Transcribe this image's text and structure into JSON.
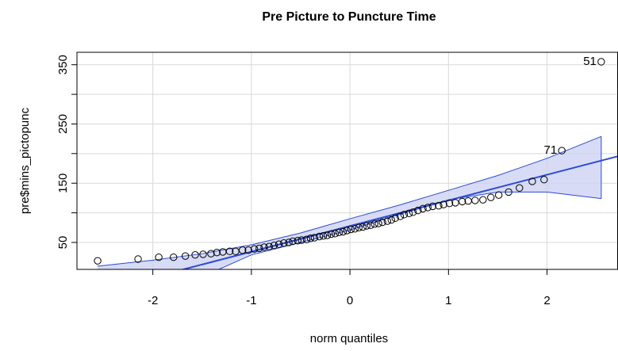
{
  "chart_data": {
    "type": "qqplot",
    "title": "Pre Picture to Puncture Time",
    "xlabel": "norm quantiles",
    "ylabel": "pre$mins_pictopunc",
    "xlim": [
      -2.77,
      2.72
    ],
    "ylim": [
      4.5,
      371
    ],
    "xticks": [
      -2,
      -1,
      0,
      1,
      2
    ],
    "yticks": [
      50,
      150,
      250,
      350
    ],
    "yminor_ticks": [
      100,
      200,
      300
    ],
    "xgrid": [
      -2,
      -1,
      0,
      1,
      2
    ],
    "ygrid": [
      50,
      100,
      150,
      200,
      250,
      300,
      350
    ],
    "grid": true,
    "point_color": "#000000",
    "line_color": "#2c4bd4",
    "band_fill": "#cdd2f3",
    "x": [
      -2.56,
      -2.15,
      -1.94,
      -1.79,
      -1.67,
      -1.57,
      -1.49,
      -1.41,
      -1.35,
      -1.29,
      -1.22,
      -1.16,
      -1.09,
      -1.03,
      -0.97,
      -0.92,
      -0.87,
      -0.82,
      -0.77,
      -0.72,
      -0.67,
      -0.62,
      -0.58,
      -0.53,
      -0.49,
      -0.44,
      -0.4,
      -0.36,
      -0.31,
      -0.27,
      -0.23,
      -0.19,
      -0.15,
      -0.11,
      -0.07,
      -0.03,
      0.01,
      0.05,
      0.09,
      0.13,
      0.17,
      0.21,
      0.25,
      0.29,
      0.33,
      0.38,
      0.42,
      0.46,
      0.51,
      0.55,
      0.6,
      0.64,
      0.69,
      0.74,
      0.79,
      0.84,
      0.9,
      0.95,
      1.01,
      1.07,
      1.14,
      1.2,
      1.27,
      1.35,
      1.43,
      1.51,
      1.61,
      1.72,
      1.85,
      1.97,
      2.15,
      2.55
    ],
    "y": [
      19,
      22,
      25,
      25,
      27,
      29,
      30,
      31,
      33,
      34,
      35,
      35,
      37,
      37,
      39,
      40,
      42,
      43,
      45,
      47,
      49,
      50,
      52,
      53,
      54,
      55,
      57,
      58,
      60,
      61,
      62,
      64,
      65,
      67,
      68,
      70,
      72,
      73,
      75,
      76,
      78,
      79,
      81,
      82,
      84,
      86,
      88,
      91,
      94,
      97,
      99,
      101,
      104,
      107,
      109,
      111,
      112,
      114,
      116,
      117,
      119,
      120,
      121,
      122,
      126,
      130,
      135,
      142,
      153,
      156,
      205,
      355
    ],
    "point_labels": [
      null,
      null,
      null,
      null,
      null,
      null,
      null,
      null,
      null,
      null,
      null,
      null,
      null,
      null,
      null,
      null,
      null,
      null,
      null,
      null,
      null,
      null,
      null,
      null,
      null,
      null,
      null,
      null,
      null,
      null,
      null,
      null,
      null,
      null,
      null,
      null,
      null,
      null,
      null,
      null,
      null,
      null,
      null,
      null,
      null,
      null,
      null,
      null,
      null,
      null,
      null,
      null,
      null,
      null,
      null,
      null,
      null,
      null,
      null,
      null,
      null,
      null,
      null,
      null,
      null,
      null,
      null,
      null,
      null,
      null,
      "71",
      "51"
    ],
    "reference_line": {
      "intercept": 77.7,
      "slope": 43.3
    },
    "band": {
      "x": [
        -2.56,
        -2,
        -1.5,
        -1,
        -0.5,
        0,
        0.5,
        1,
        1.5,
        2,
        2.55
      ],
      "upper": [
        10,
        20,
        31,
        46,
        66,
        90,
        113,
        138,
        163,
        192,
        229
      ],
      "lower": [
        -60,
        -35,
        -8,
        29,
        50,
        71,
        97,
        122,
        135,
        135,
        124
      ]
    }
  }
}
